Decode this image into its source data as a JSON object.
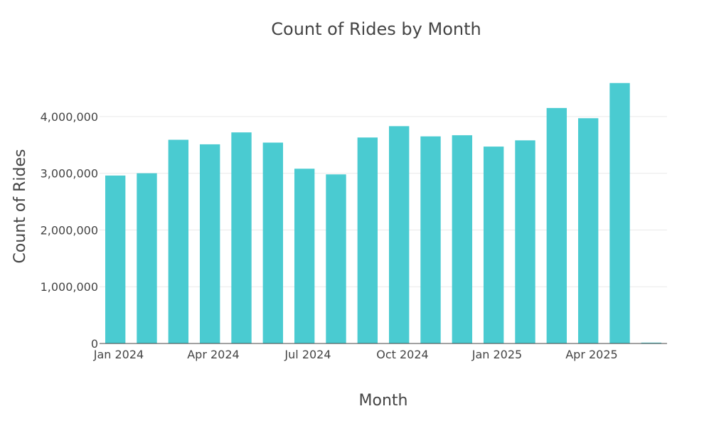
{
  "chart_data": {
    "type": "bar",
    "title": "Count of Rides by Month",
    "xlabel": "Month",
    "ylabel": "Count of Rides",
    "categories": [
      "2024-01",
      "2024-02",
      "2024-03",
      "2024-04",
      "2024-05",
      "2024-06",
      "2024-07",
      "2024-08",
      "2024-09",
      "2024-10",
      "2024-11",
      "2024-12",
      "2025-01",
      "2025-02",
      "2025-03",
      "2025-04",
      "2025-05",
      "2025-06"
    ],
    "x_tick_labels": [
      {
        "category": "2024-01",
        "label": "Jan 2024"
      },
      {
        "category": "2024-04",
        "label": "Apr 2024"
      },
      {
        "category": "2024-07",
        "label": "Jul 2024"
      },
      {
        "category": "2024-10",
        "label": "Oct 2024"
      },
      {
        "category": "2025-01",
        "label": "Jan 2025"
      },
      {
        "category": "2025-04",
        "label": "Apr 2025"
      }
    ],
    "values": [
      2960000,
      3000000,
      3590000,
      3510000,
      3720000,
      3540000,
      3080000,
      2980000,
      3630000,
      3830000,
      3650000,
      3670000,
      3470000,
      3580000,
      4150000,
      3970000,
      4590000,
      15000
    ],
    "ylim": [
      0,
      4800000
    ],
    "y_ticks": [
      {
        "value": 0,
        "label": "0"
      },
      {
        "value": 1000000,
        "label": "1,000,000"
      },
      {
        "value": 2000000,
        "label": "2,000,000"
      },
      {
        "value": 3000000,
        "label": "3,000,000"
      },
      {
        "value": 4000000,
        "label": "4,000,000"
      }
    ],
    "grid": true,
    "bar_color": "#4ACBD1",
    "grid_color": "#E9E9E9",
    "text_color": "#444444"
  }
}
